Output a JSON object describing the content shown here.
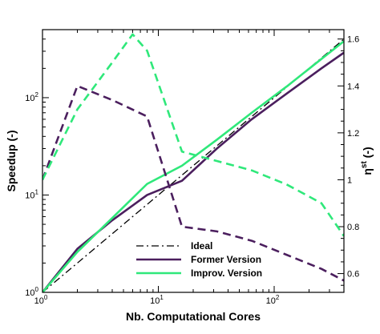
{
  "chart_data": {
    "type": "line",
    "xlabel": "Nb. Computational Cores",
    "ylabel": "Speedup (-)",
    "y2label": "η^st (-)",
    "xscale": "log",
    "yscale": "log",
    "xlim": [
      1,
      400
    ],
    "ylim": [
      1,
      500
    ],
    "y2lim": [
      0.52,
      1.64
    ],
    "x_ticks": [
      {
        "value": 1,
        "base": "10",
        "exp": "0"
      },
      {
        "value": 10,
        "base": "10",
        "exp": "1"
      },
      {
        "value": 100,
        "base": "10",
        "exp": "2"
      }
    ],
    "y_ticks": [
      {
        "value": 1,
        "base": "10",
        "exp": "0"
      },
      {
        "value": 10,
        "base": "10",
        "exp": "1"
      },
      {
        "value": 100,
        "base": "10",
        "exp": "2"
      }
    ],
    "y2_ticks": [
      {
        "value": 0.6,
        "label": "0.6"
      },
      {
        "value": 0.8,
        "label": "0.8"
      },
      {
        "value": 1.0,
        "label": "1"
      },
      {
        "value": 1.2,
        "label": "1.2"
      },
      {
        "value": 1.4,
        "label": "1.4"
      },
      {
        "value": 1.6,
        "label": "1.6"
      }
    ],
    "legend_position": "bottom-center",
    "series": [
      {
        "name": "Ideal",
        "axis": "left",
        "color": "#000000",
        "style": "dashdot",
        "legend": true,
        "x": [
          1,
          400
        ],
        "y": [
          1,
          400
        ]
      },
      {
        "name": "Former Version",
        "axis": "left",
        "color": "#4b1f5e",
        "style": "solid",
        "legend": true,
        "x": [
          1,
          2,
          4,
          8,
          16,
          32,
          64,
          128,
          256,
          400
        ],
        "y": [
          1,
          2.8,
          5.5,
          10,
          14,
          30,
          60,
          110,
          200,
          290
        ]
      },
      {
        "name": "Improv. Version",
        "axis": "left",
        "color": "#2fe87a",
        "style": "solid",
        "legend": true,
        "x": [
          1,
          2,
          4,
          8,
          16,
          32,
          64,
          128,
          256,
          400
        ],
        "y": [
          1,
          2.6,
          5.8,
          13,
          20,
          37,
          70,
          130,
          250,
          380
        ]
      },
      {
        "axis": "right",
        "color": "#4b1f5e",
        "style": "dashed",
        "legend": false,
        "x": [
          1,
          2,
          4,
          8,
          16,
          32,
          64,
          128,
          256,
          400
        ],
        "y": [
          1.0,
          1.4,
          1.34,
          1.27,
          0.8,
          0.78,
          0.74,
          0.68,
          0.62,
          0.57
        ]
      },
      {
        "axis": "right",
        "color": "#2fe87a",
        "style": "dashed",
        "legend": false,
        "x": [
          1,
          2,
          4,
          6,
          8,
          16,
          32,
          64,
          128,
          256,
          400
        ],
        "y": [
          1.0,
          1.3,
          1.5,
          1.62,
          1.55,
          1.12,
          1.08,
          1.04,
          0.98,
          0.9,
          0.76
        ]
      }
    ]
  }
}
